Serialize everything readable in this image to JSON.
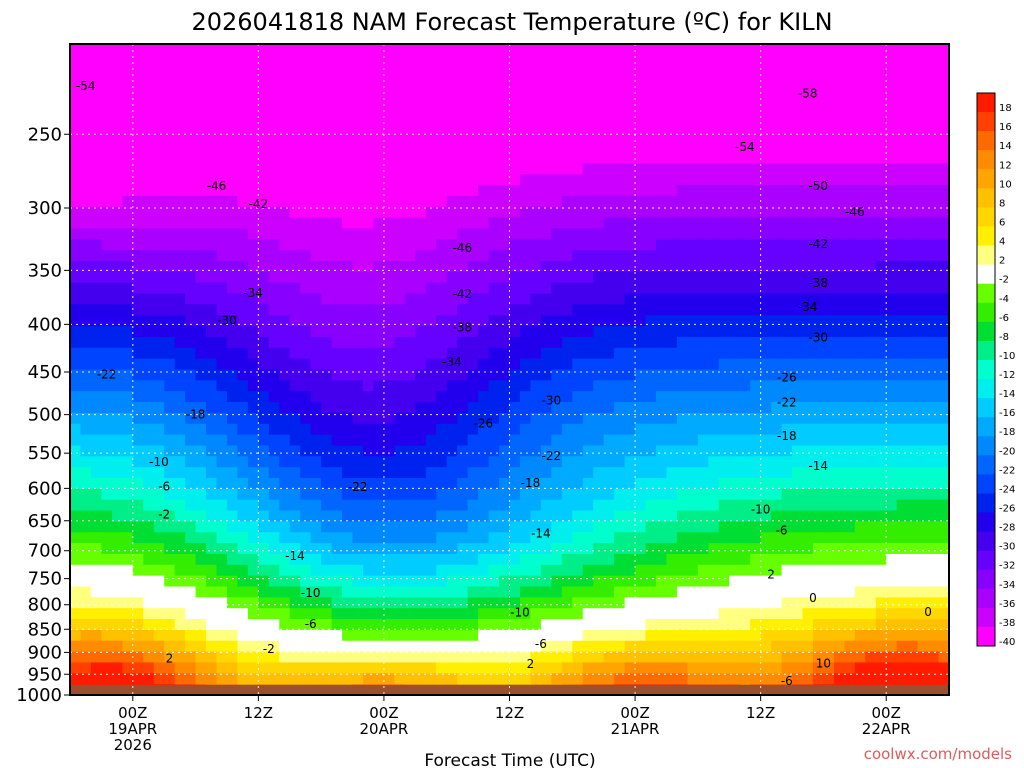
{
  "chart_data": {
    "type": "heatmap",
    "title": "2026041818 NAM Forecast Temperature (ºC) for KILN",
    "xlabel": "Forecast Time (UTC)",
    "ylabel": "",
    "credit": "coolwx.com/models",
    "x_ticks": [
      {
        "hour": 6,
        "lines": [
          "00Z",
          "19APR",
          "2026"
        ]
      },
      {
        "hour": 18,
        "lines": [
          "12Z"
        ]
      },
      {
        "hour": 30,
        "lines": [
          "00Z",
          "20APR"
        ]
      },
      {
        "hour": 42,
        "lines": [
          "12Z"
        ]
      },
      {
        "hour": 54,
        "lines": [
          "00Z",
          "21APR"
        ]
      },
      {
        "hour": 66,
        "lines": [
          "12Z"
        ]
      },
      {
        "hour": 78,
        "lines": [
          "00Z",
          "22APR"
        ]
      }
    ],
    "x_range_hours": [
      0,
      84
    ],
    "y_scale": "log-pressure",
    "y_range_hpa": [
      1000,
      200
    ],
    "y_ticks": [
      250,
      300,
      350,
      400,
      450,
      500,
      550,
      600,
      650,
      700,
      750,
      800,
      850,
      900,
      950,
      1000
    ],
    "colorbar": {
      "levels": [
        18,
        16,
        14,
        12,
        10,
        8,
        6,
        4,
        2,
        -2,
        -4,
        -6,
        -8,
        -10,
        -12,
        -14,
        -16,
        -18,
        -20,
        -22,
        -24,
        -26,
        -28,
        -30,
        -32,
        -34,
        -36,
        -38,
        -40
      ],
      "colors": [
        "#ff1a00",
        "#ff4000",
        "#ff6a00",
        "#ff8c00",
        "#ffa500",
        "#ffc000",
        "#ffd700",
        "#fff000",
        "#ffff80",
        "#ffffff",
        "#66ff00",
        "#33ee00",
        "#00dd33",
        "#00ee88",
        "#00ffcc",
        "#00eeee",
        "#00ccff",
        "#00aaff",
        "#0088ff",
        "#0066ff",
        "#0044ff",
        "#0022ee",
        "#2200ee",
        "#4400ee",
        "#6600ff",
        "#8800ff",
        "#aa00ff",
        "#cc00ff",
        "#ff00ff"
      ]
    },
    "contour_labels": [
      {
        "text": "-54",
        "hour": 1.5,
        "p": 222
      },
      {
        "text": "-58",
        "hour": 70.5,
        "p": 226
      },
      {
        "text": "-54",
        "hour": 64.5,
        "p": 258
      },
      {
        "text": "-50",
        "hour": 71.5,
        "p": 284
      },
      {
        "text": "-46",
        "hour": 14,
        "p": 284
      },
      {
        "text": "-46",
        "hour": 75,
        "p": 303
      },
      {
        "text": "-42",
        "hour": 18,
        "p": 297
      },
      {
        "text": "-46",
        "hour": 37.5,
        "p": 331
      },
      {
        "text": "-42",
        "hour": 71.5,
        "p": 328
      },
      {
        "text": "-38",
        "hour": 71.5,
        "p": 361
      },
      {
        "text": "-42",
        "hour": 37.5,
        "p": 371
      },
      {
        "text": "-34",
        "hour": 17.5,
        "p": 370
      },
      {
        "text": "-34",
        "hour": 70.5,
        "p": 383
      },
      {
        "text": "-30",
        "hour": 15,
        "p": 396
      },
      {
        "text": "-38",
        "hour": 37.5,
        "p": 403
      },
      {
        "text": "-30",
        "hour": 71.5,
        "p": 413
      },
      {
        "text": "-34",
        "hour": 36.5,
        "p": 439
      },
      {
        "text": "-22",
        "hour": 3.5,
        "p": 453
      },
      {
        "text": "-26",
        "hour": 68.5,
        "p": 456
      },
      {
        "text": "-30",
        "hour": 46,
        "p": 483
      },
      {
        "text": "-22",
        "hour": 68.5,
        "p": 485
      },
      {
        "text": "-18",
        "hour": 12,
        "p": 500
      },
      {
        "text": "-26",
        "hour": 39.5,
        "p": 511
      },
      {
        "text": "-18",
        "hour": 68.5,
        "p": 527
      },
      {
        "text": "-22",
        "hour": 46,
        "p": 554
      },
      {
        "text": "-10",
        "hour": 8.5,
        "p": 562
      },
      {
        "text": "-14",
        "hour": 71.5,
        "p": 568
      },
      {
        "text": "-18",
        "hour": 44,
        "p": 592
      },
      {
        "text": "-6",
        "hour": 9,
        "p": 597
      },
      {
        "text": "-22",
        "hour": 27.5,
        "p": 598
      },
      {
        "text": "-10",
        "hour": 66,
        "p": 632
      },
      {
        "text": "-2",
        "hour": 9,
        "p": 640
      },
      {
        "text": "-6",
        "hour": 68,
        "p": 666
      },
      {
        "text": "-14",
        "hour": 45,
        "p": 671
      },
      {
        "text": "-14",
        "hour": 21.5,
        "p": 709
      },
      {
        "text": "2",
        "hour": 67,
        "p": 742
      },
      {
        "text": "-10",
        "hour": 23,
        "p": 777
      },
      {
        "text": "0",
        "hour": 71,
        "p": 787
      },
      {
        "text": "-10",
        "hour": 43,
        "p": 815
      },
      {
        "text": "0",
        "hour": 82,
        "p": 814
      },
      {
        "text": "-6",
        "hour": 23,
        "p": 839
      },
      {
        "text": "-6",
        "hour": 45,
        "p": 882
      },
      {
        "text": "-2",
        "hour": 19,
        "p": 893
      },
      {
        "text": "2",
        "hour": 9.5,
        "p": 914
      },
      {
        "text": "2",
        "hour": 44,
        "p": 926
      },
      {
        "text": "10",
        "hour": 72,
        "p": 925
      },
      {
        "text": "-6",
        "hour": 68.5,
        "p": 966
      }
    ],
    "grid": true,
    "legend": "colorbar-right"
  }
}
